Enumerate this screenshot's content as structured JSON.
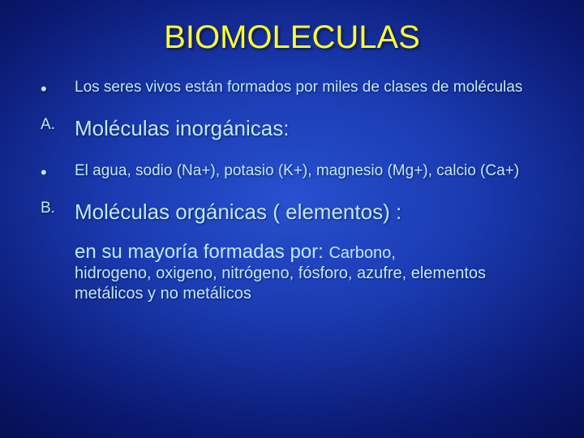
{
  "colors": {
    "title": "#ffff33",
    "body": "#c0e8f8",
    "bg_center": "#2850d0",
    "bg_edge": "#040a40"
  },
  "title": "BIOMOLECULAS",
  "items": [
    {
      "marker": "•",
      "text": "Los seres vivos están formados por miles de clases de moléculas"
    },
    {
      "marker": "A.",
      "text": "Moléculas inorgánicas:"
    },
    {
      "marker": "•",
      "text": "El agua, sodio (Na+), potasio (K+), magnesio (Mg+), calcio (Ca+)"
    },
    {
      "marker": "B.",
      "text": "Moléculas orgánicas ( elementos) :"
    }
  ],
  "closing": {
    "lead": " en su mayoría formadas por: ",
    "lead_tail": "Carbono,",
    "rest": "hidrogeno, oxigeno, nitrógeno, fósforo, azufre, elementos metálicos y no metálicos"
  }
}
